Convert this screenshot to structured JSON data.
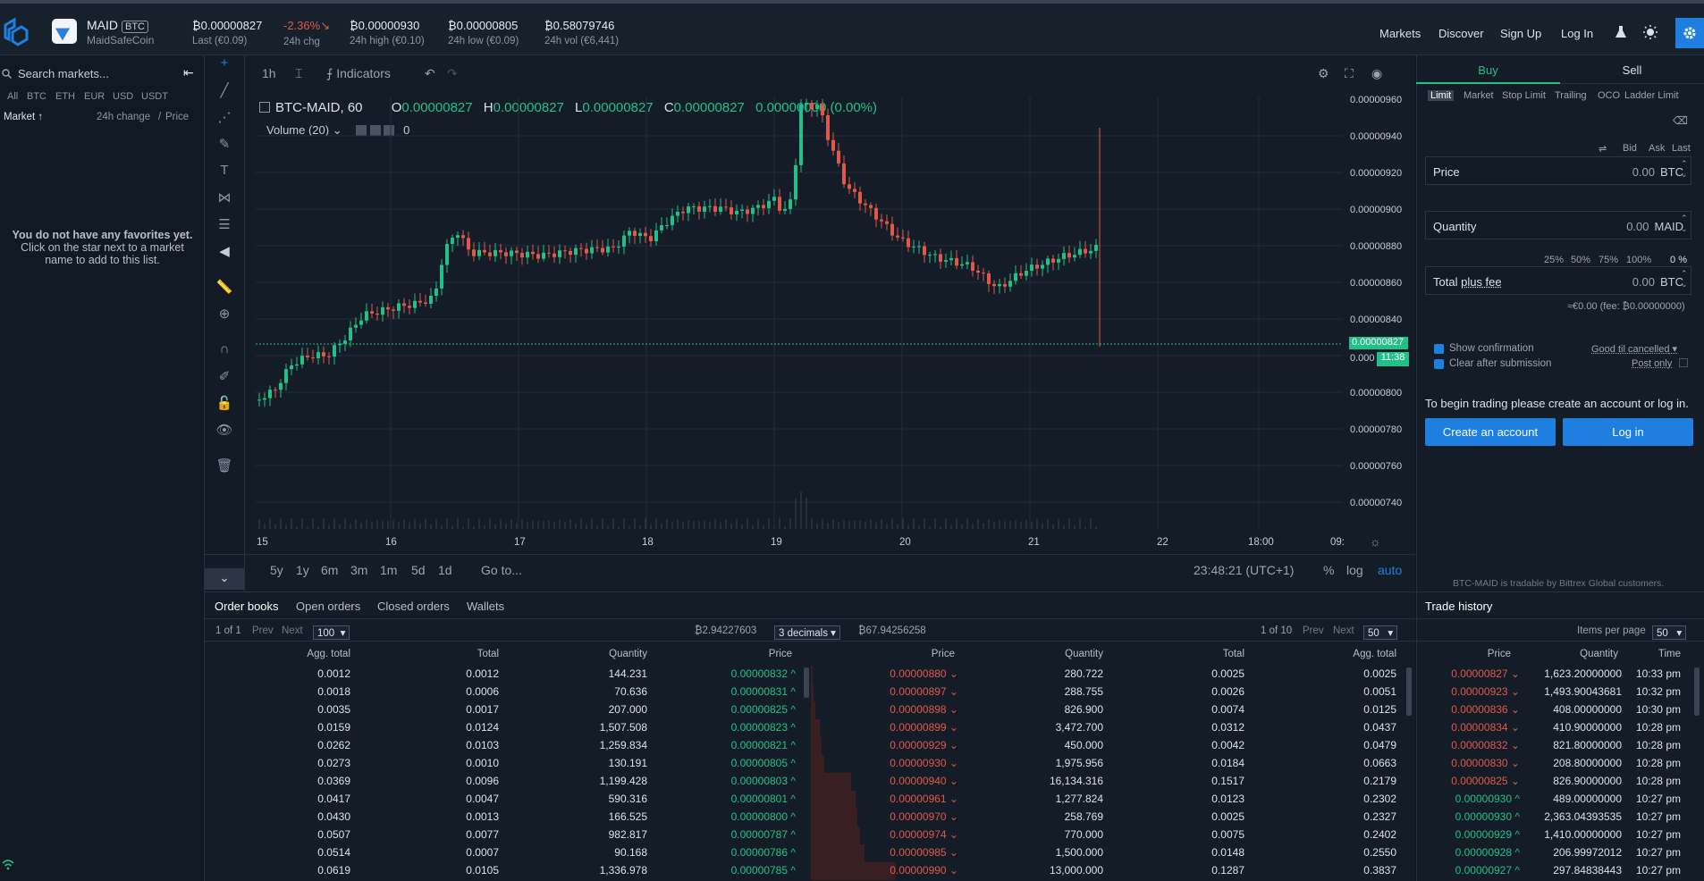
{
  "header": {
    "symbol": "MAID",
    "base": "BTC",
    "coin_name": "MaidSafeCoin",
    "stats": [
      {
        "value": "₿0.00000827",
        "label": "Last (€0.09)",
        "color": "#e6ebf0"
      },
      {
        "value": "-2.36%↘",
        "label": "24h chg",
        "color": "#e0584a"
      },
      {
        "value": "₿0.00000930",
        "label": "24h high (€0.10)",
        "color": "#e6ebf0"
      },
      {
        "value": "₿0.00000805",
        "label": "24h low (€0.09)",
        "color": "#e6ebf0"
      },
      {
        "value": "₿0.58079746",
        "label": "24h vol (€6,441)",
        "color": "#e6ebf0"
      }
    ],
    "nav": [
      "Markets",
      "Discover",
      "Sign Up",
      "Log In"
    ]
  },
  "markets": {
    "search_placeholder": "Search markets...",
    "filters": [
      "All",
      "BTC",
      "ETH",
      "EUR",
      "USD",
      "USDT"
    ],
    "col_market": "Market ↑",
    "col_change": "24h change",
    "col_sep": "/",
    "col_price": "Price",
    "empty_line1": "You do not have any favorites yet.",
    "empty_line2": "Click on the star next to a market",
    "empty_line3": "name to add to this list."
  },
  "chart": {
    "interval": "1h",
    "indicators_label": "Indicators",
    "pair_label": "BTC-MAID, 60",
    "o": "0.00000827",
    "h": "0.00000827",
    "l": "0.00000827",
    "c": "0.00000827",
    "change": "0.00000000 (0.00%)",
    "volume_label": "Volume (20)",
    "volume_value": "0",
    "y_ticks": [
      "0.00000960",
      "0.00000940",
      "0.00000920",
      "0.00000900",
      "0.00000880",
      "0.00000860",
      "0.00000840",
      "0.00000800",
      "0.00000780",
      "0.00000760",
      "0.00000740"
    ],
    "partial_tick": "0.000",
    "x_ticks": [
      "15",
      "16",
      "17",
      "18",
      "19",
      "20",
      "21",
      "22",
      "18:00",
      "09:"
    ],
    "last_price": "0.00000827",
    "countdown": "11:38",
    "ranges": [
      "5y",
      "1y",
      "6m",
      "3m",
      "1m",
      "5d",
      "1d"
    ],
    "goto": "Go to...",
    "clock": "23:48:21 (UTC+1)",
    "opts": [
      "%",
      "log",
      "auto"
    ]
  },
  "order_form": {
    "tab_buy": "Buy",
    "tab_sell": "Sell",
    "types": [
      "Limit",
      "Market",
      "Stop Limit",
      "Trailing",
      "OCO",
      "Ladder Limit"
    ],
    "quick": [
      "Bid",
      "Ask",
      "Last"
    ],
    "price_label": "Price",
    "price_value": "0.00",
    "price_cur": "BTC",
    "qty_label": "Quantity",
    "qty_value": "0.00",
    "qty_cur": "MAID",
    "pcts": [
      "25%",
      "50%",
      "75%",
      "100%"
    ],
    "pct_value": "0",
    "pct_unit": "%",
    "total_label": "Total",
    "total_fee": "plus fee",
    "total_value": "0.00",
    "total_cur": "BTC",
    "fee_note": "≈€0.00 (fee: ₿0.00000000)",
    "show_confirmation": "Show confirmation",
    "clear_after": "Clear after submission",
    "gtc": "Good til cancelled",
    "post_only": "Post only",
    "begin_text": "To begin trading please create an account or log in.",
    "create_btn": "Create an account",
    "login_btn": "Log in",
    "tradable_note": "BTC-MAID is tradable by Bittrex Global customers."
  },
  "bottom": {
    "tabs": [
      "Order books",
      "Open orders",
      "Closed orders",
      "Wallets"
    ],
    "left_pager": "1 of 1",
    "prev": "Prev",
    "next": "Next",
    "left_size": "100",
    "bid_sum": "₿2.94227603",
    "decimals": "3 decimals",
    "ask_sum": "₿67.94256258",
    "right_pager": "1 of 10",
    "right_size": "50",
    "bid_headers": [
      "Agg. total",
      "Total",
      "Quantity",
      "Price"
    ],
    "ask_headers": [
      "Price",
      "Quantity",
      "Total",
      "Agg. total"
    ],
    "bids": [
      [
        "0.0012",
        "0.0012",
        "144.231",
        "0.00000832"
      ],
      [
        "0.0018",
        "0.0006",
        "70.636",
        "0.00000831"
      ],
      [
        "0.0035",
        "0.0017",
        "207.000",
        "0.00000825"
      ],
      [
        "0.0159",
        "0.0124",
        "1,507.508",
        "0.00000823"
      ],
      [
        "0.0262",
        "0.0103",
        "1,259.834",
        "0.00000821"
      ],
      [
        "0.0273",
        "0.0010",
        "130.191",
        "0.00000805"
      ],
      [
        "0.0369",
        "0.0096",
        "1,199.428",
        "0.00000803"
      ],
      [
        "0.0417",
        "0.0047",
        "590.316",
        "0.00000801"
      ],
      [
        "0.0430",
        "0.0013",
        "166.525",
        "0.00000800"
      ],
      [
        "0.0507",
        "0.0077",
        "982.817",
        "0.00000787"
      ],
      [
        "0.0514",
        "0.0007",
        "90.168",
        "0.00000786"
      ],
      [
        "0.0619",
        "0.0105",
        "1,336.978",
        "0.00000785"
      ]
    ],
    "asks": [
      [
        "0.00000880",
        "280.722",
        "0.0025",
        "0.0025"
      ],
      [
        "0.00000897",
        "288.755",
        "0.0026",
        "0.0051"
      ],
      [
        "0.00000898",
        "826.900",
        "0.0074",
        "0.0125"
      ],
      [
        "0.00000899",
        "3,472.700",
        "0.0312",
        "0.0437"
      ],
      [
        "0.00000929",
        "450.000",
        "0.0042",
        "0.0479"
      ],
      [
        "0.00000930",
        "1,975.956",
        "0.0184",
        "0.0663"
      ],
      [
        "0.00000940",
        "16,134.316",
        "0.1517",
        "0.2179"
      ],
      [
        "0.00000961",
        "1,277.824",
        "0.0123",
        "0.2302"
      ],
      [
        "0.00000970",
        "258.769",
        "0.0025",
        "0.2327"
      ],
      [
        "0.00000974",
        "770.000",
        "0.0075",
        "0.2402"
      ],
      [
        "0.00000985",
        "1,500.000",
        "0.0148",
        "0.2550"
      ],
      [
        "0.00000990",
        "13,000.000",
        "0.1287",
        "0.3837"
      ]
    ]
  },
  "trades": {
    "title": "Trade history",
    "items_label": "Items per page",
    "items_size": "50",
    "headers": [
      "Price",
      "Quantity",
      "Time"
    ],
    "rows": [
      [
        "0.00000827",
        "1,623.20000000",
        "10:33 pm",
        "red"
      ],
      [
        "0.00000923",
        "1,493.90043681",
        "10:32 pm",
        "red"
      ],
      [
        "0.00000836",
        "408.00000000",
        "10:30 pm",
        "red"
      ],
      [
        "0.00000834",
        "410.90000000",
        "10:28 pm",
        "red"
      ],
      [
        "0.00000832",
        "821.80000000",
        "10:28 pm",
        "red"
      ],
      [
        "0.00000830",
        "208.80000000",
        "10:28 pm",
        "red"
      ],
      [
        "0.00000825",
        "826.90000000",
        "10:28 pm",
        "red"
      ],
      [
        "0.00000930",
        "489.00000000",
        "10:27 pm",
        "green"
      ],
      [
        "0.00000930",
        "2,363.04393535",
        "10:27 pm",
        "green"
      ],
      [
        "0.00000929",
        "1,410.00000000",
        "10:27 pm",
        "green"
      ],
      [
        "0.00000928",
        "206.99972012",
        "10:27 pm",
        "green"
      ],
      [
        "0.00000927",
        "297.84838443",
        "10:27 pm",
        "green"
      ]
    ]
  }
}
